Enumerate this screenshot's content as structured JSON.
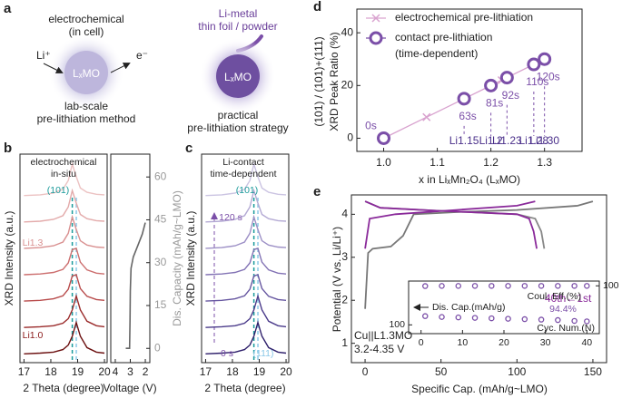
{
  "panel_a": {
    "label": "a",
    "left": {
      "title": "electrochemical",
      "subtitle": "(in cell)",
      "ion": "Li⁺",
      "electron": "e⁻",
      "particle": "LₓMO",
      "caption": [
        "lab-scale",
        "pre-lithiation method"
      ]
    },
    "right": {
      "source": [
        "Li-metal",
        "thin foil / powder"
      ],
      "particle": "LₓMO",
      "caption": [
        "practical",
        "pre-lithiation strategy"
      ]
    }
  },
  "chart_data": [
    {
      "type": "line",
      "panel": "b",
      "x": [
        17,
        17.6,
        18.1,
        18.45,
        18.65,
        18.8,
        18.95,
        19.1,
        19.35,
        19.7,
        20
      ],
      "xlim": [
        16.85,
        20.1
      ],
      "xticks": [
        17,
        18,
        19,
        20
      ],
      "ylim": [
        -0.3,
        8.0
      ],
      "xlabel": "2 Theta (degree)",
      "ylabel": "XRD Intensity (a.u.)",
      "annotations": [
        "electrochemical",
        "in-situ",
        "(101)",
        "Li1.3",
        "Li1.0"
      ],
      "ref_lines": [
        {
          "value": 18.8,
          "color": "#1a9a9a"
        },
        {
          "value": 18.95,
          "color": "#8cc8e8"
        }
      ],
      "series": [
        {
          "color": "#6b0f0f",
          "values": [
            0.05,
            0.08,
            0.12,
            0.22,
            0.4,
            0.75,
            1.3,
            0.75,
            0.3,
            0.12,
            0.08
          ]
        },
        {
          "color": "#9a2a2a",
          "values": [
            1.1,
            1.13,
            1.17,
            1.27,
            1.45,
            1.8,
            2.35,
            1.8,
            1.35,
            1.17,
            1.13
          ]
        },
        {
          "color": "#b84a4a",
          "values": [
            2.15,
            2.18,
            2.24,
            2.36,
            2.62,
            3.15,
            3.2,
            2.65,
            2.34,
            2.21,
            2.18
          ]
        },
        {
          "color": "#cc6e6e",
          "values": [
            3.2,
            3.23,
            3.29,
            3.41,
            3.67,
            4.2,
            4.25,
            3.7,
            3.39,
            3.26,
            3.23
          ]
        },
        {
          "color": "#d99090",
          "values": [
            4.25,
            4.28,
            4.35,
            4.5,
            4.85,
            5.5,
            5.0,
            4.55,
            4.38,
            4.3,
            4.28
          ]
        },
        {
          "color": "#e3aaaa",
          "values": [
            5.3,
            5.33,
            5.4,
            5.55,
            5.9,
            6.55,
            6.05,
            5.6,
            5.43,
            5.35,
            5.33
          ]
        },
        {
          "color": "#ecc2c2",
          "values": [
            6.35,
            6.38,
            6.45,
            6.6,
            6.95,
            7.6,
            7.1,
            6.65,
            6.48,
            6.4,
            6.38
          ]
        }
      ]
    },
    {
      "type": "line",
      "x": [
        3.3,
        3.05,
        3.02,
        3.0,
        2.95,
        2.8,
        2.5,
        2.2,
        2.0
      ],
      "xlim": [
        4.3,
        1.7
      ],
      "xticks": [
        4,
        3,
        2
      ],
      "ylim": [
        -5,
        68
      ],
      "yticks": [
        0,
        15,
        30,
        45,
        60
      ],
      "y_side": "right",
      "xlabel": "Voltage (V)",
      "ylabel": "Dis. Capacity (mAh/g~LMO)",
      "series": [
        {
          "color": "#666666",
          "values": [
            0,
            0,
            10,
            20,
            28,
            32,
            36,
            40,
            44
          ]
        }
      ]
    },
    {
      "type": "line",
      "panel": "c",
      "x": [
        17,
        17.6,
        18.1,
        18.45,
        18.65,
        18.8,
        18.95,
        19.1,
        19.35,
        19.7,
        20
      ],
      "xlim": [
        16.85,
        20.1
      ],
      "xticks": [
        17,
        18,
        19,
        20
      ],
      "ylim": [
        -0.3,
        8.0
      ],
      "xlabel": "2 Theta (degree)",
      "ylabel": "XRD Intensity (a.u.)",
      "annotations": [
        "Li-contact",
        "time-dependent",
        "(101)",
        "120 s",
        "0 s",
        "(111)"
      ],
      "ref_lines": [
        {
          "value": 18.8,
          "color": "#1a9a9a"
        },
        {
          "value": 18.95,
          "color": "#8cc8e8"
        }
      ],
      "series": [
        {
          "color": "#2e1f6b",
          "values": [
            0.05,
            0.08,
            0.12,
            0.22,
            0.4,
            0.75,
            1.3,
            0.75,
            0.3,
            0.12,
            0.08
          ]
        },
        {
          "color": "#4a3a8a",
          "values": [
            1.1,
            1.13,
            1.17,
            1.27,
            1.45,
            1.8,
            2.35,
            1.8,
            1.35,
            1.17,
            1.13
          ]
        },
        {
          "color": "#6656a0",
          "values": [
            2.15,
            2.18,
            2.24,
            2.36,
            2.62,
            3.15,
            3.2,
            2.65,
            2.34,
            2.21,
            2.18
          ]
        },
        {
          "color": "#8272b4",
          "values": [
            3.2,
            3.23,
            3.29,
            3.41,
            3.67,
            4.2,
            4.25,
            3.7,
            3.39,
            3.26,
            3.23
          ]
        },
        {
          "color": "#9d90c6",
          "values": [
            4.25,
            4.28,
            4.35,
            4.5,
            4.85,
            5.5,
            5.0,
            4.55,
            4.38,
            4.3,
            4.28
          ]
        },
        {
          "color": "#b4aad4",
          "values": [
            5.3,
            5.33,
            5.4,
            5.55,
            5.9,
            6.55,
            6.05,
            5.6,
            5.43,
            5.35,
            5.33
          ]
        },
        {
          "color": "#cbc4e2",
          "values": [
            6.35,
            6.38,
            6.45,
            6.6,
            6.95,
            7.6,
            7.1,
            6.65,
            6.48,
            6.4,
            6.38
          ]
        }
      ]
    },
    {
      "type": "line",
      "panel": "d",
      "xlabel": "x in LiₓMn₂O₄ (LₓMO)",
      "ylabel": [
        "(101) / (101)+(111)",
        "XRD Peak Ratio (%)"
      ],
      "xlim": [
        0.95,
        1.37
      ],
      "xticks": [
        {
          "value": 1,
          "label": "1.0"
        },
        1.1,
        1.2,
        1.3
      ],
      "ylim": [
        -5,
        49
      ],
      "yticks": [
        0,
        20,
        40
      ],
      "legend": "upper left",
      "series": [
        {
          "name": "electrochemical pre-lithiation",
          "color": "#d9a3cf",
          "marker": "x",
          "x": [
            1.0,
            1.08,
            1.15,
            1.22,
            1.3
          ],
          "values": [
            0,
            8,
            15,
            22,
            30
          ]
        },
        {
          "name": "contact pre-lithiation",
          "note": "(time-dependent)",
          "color": "#7b4fa8",
          "marker": "o",
          "x": [
            1.0,
            1.15,
            1.2,
            1.23,
            1.28,
            1.3
          ],
          "values": [
            0,
            15,
            20,
            23,
            28,
            30
          ],
          "labels": [
            "0s",
            "63s",
            "81s",
            "92s",
            "110s",
            "120s"
          ],
          "compositions": [
            null,
            "Li1.15",
            "Li1.2",
            "Li1.23",
            "Li1.28",
            "Li1.30"
          ]
        }
      ]
    },
    {
      "type": "line",
      "panel": "e",
      "xlabel": "Specific Cap. (mAh/g~LMO)",
      "ylabel": "Potential (V vs. Li/Li⁺)",
      "xlim": [
        -9,
        159
      ],
      "xticks": [
        0,
        50,
        100,
        150
      ],
      "ylim": [
        0.55,
        4.45
      ],
      "yticks": [
        1,
        2,
        3,
        4
      ],
      "annotations": [
        "40th←1st",
        "Cu||L1.3MO",
        "3.2-4.35 V"
      ],
      "series": [
        {
          "color": "#777777",
          "x": [
            0,
            2,
            5,
            17,
            25,
            32,
            60,
            100,
            140,
            150
          ],
          "values": [
            1.8,
            3.1,
            3.2,
            3.25,
            3.5,
            4.0,
            4.05,
            4.1,
            4.2,
            4.3
          ]
        },
        {
          "color": "#888888",
          "x": [
            0,
            10,
            50,
            100,
            112,
            116,
            118
          ],
          "values": [
            4.3,
            4.15,
            4.08,
            4.0,
            3.9,
            3.6,
            3.2
          ]
        },
        {
          "color": "#8a2a9a",
          "x": [
            0,
            3,
            20,
            60,
            100,
            112
          ],
          "values": [
            3.2,
            3.9,
            4.0,
            4.1,
            4.2,
            4.3
          ]
        },
        {
          "color": "#8a2a9a",
          "x": [
            0,
            10,
            50,
            100,
            108,
            111,
            113
          ],
          "values": [
            4.3,
            4.15,
            4.08,
            4.0,
            3.9,
            3.6,
            3.2
          ]
        }
      ]
    },
    {
      "type": "scatter",
      "inset": true,
      "x": [
        1,
        5,
        9,
        13,
        17,
        21,
        25,
        29,
        33,
        37,
        40
      ],
      "xlim": [
        -3,
        43
      ],
      "xticks": [
        0,
        10,
        20,
        30,
        40
      ],
      "ylim": [
        90,
        150
      ],
      "yticks": [
        100
      ],
      "y2lim": [
        0,
        110
      ],
      "y2ticks": [
        100
      ],
      "annotations": [
        "94.4%",
        "Cyc. Num.(N)"
      ],
      "series": [
        {
          "name": "Coul. Eff.(%)",
          "color": "#7b4fa8",
          "axis": "y2",
          "values": [
            99.5,
            99.8,
            99.8,
            99.9,
            99.9,
            99.9,
            99.9,
            99.9,
            99.9,
            99.9,
            99.9
          ]
        },
        {
          "name": "Dis. Cap.(mAh/g)",
          "color": "#7b4fa8",
          "values": [
            110,
            109,
            108.5,
            108,
            107.5,
            107,
            106.5,
            106,
            105.5,
            104.5,
            104
          ]
        }
      ]
    }
  ]
}
